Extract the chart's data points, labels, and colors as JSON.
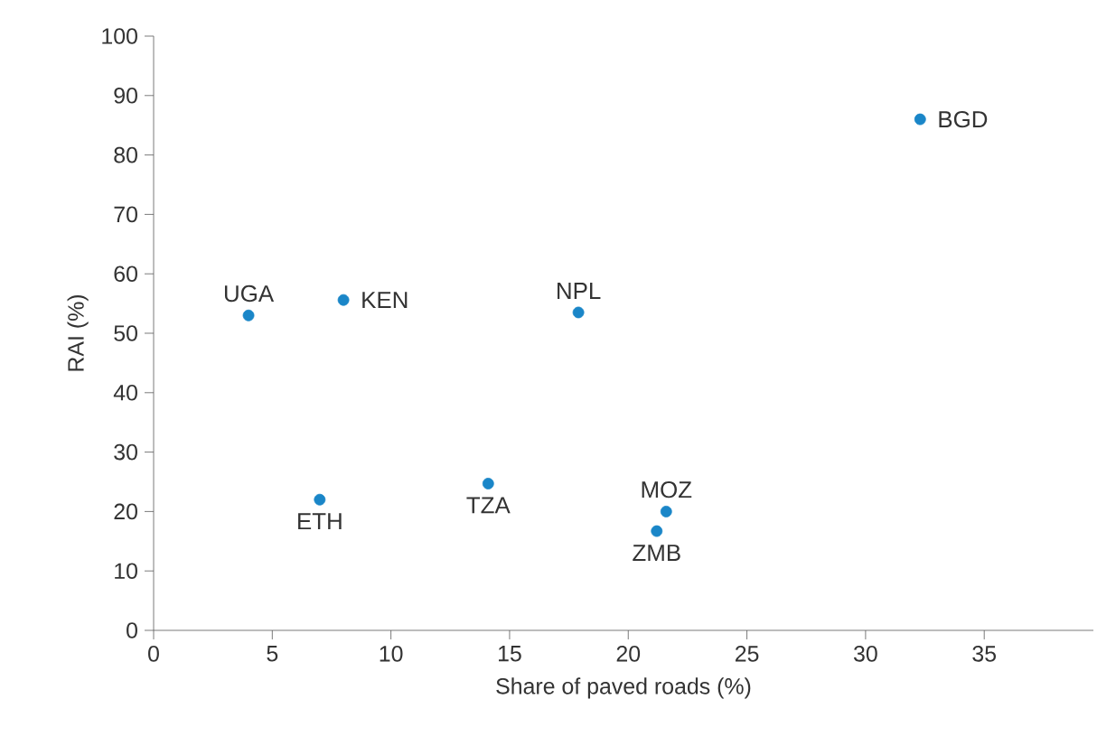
{
  "chart_data": {
    "type": "scatter",
    "xlabel": "Share of paved roads (%)",
    "ylabel": "RAI (%)",
    "x": [
      4,
      8,
      17.9,
      32.3,
      7,
      14.1,
      21.6,
      21.2
    ],
    "values": [
      53,
      55.6,
      53.5,
      86,
      22,
      24.7,
      20,
      16.7
    ],
    "color": "#1a86c8",
    "marker": "circle",
    "xlim": [
      0,
      39.6
    ],
    "ylim": [
      0,
      100
    ],
    "xticks": [
      0,
      5,
      10,
      15,
      20,
      25,
      30,
      35
    ],
    "yticks": [
      0,
      10,
      20,
      30,
      40,
      50,
      60,
      70,
      80,
      90,
      100
    ],
    "grid": false,
    "annotations": [
      {
        "text": "UGA",
        "x": 4,
        "y": 53
      },
      {
        "text": "KEN",
        "x": 8,
        "y": 55.6
      },
      {
        "text": "NPL",
        "x": 17.9,
        "y": 53.5
      },
      {
        "text": "BGD",
        "x": 32.3,
        "y": 86
      },
      {
        "text": "ETH",
        "x": 7,
        "y": 22
      },
      {
        "text": "TZA",
        "x": 14.1,
        "y": 24.7
      },
      {
        "text": "MOZ",
        "x": 21.6,
        "y": 20
      },
      {
        "text": "ZMB",
        "x": 21.2,
        "y": 16.7
      }
    ]
  }
}
